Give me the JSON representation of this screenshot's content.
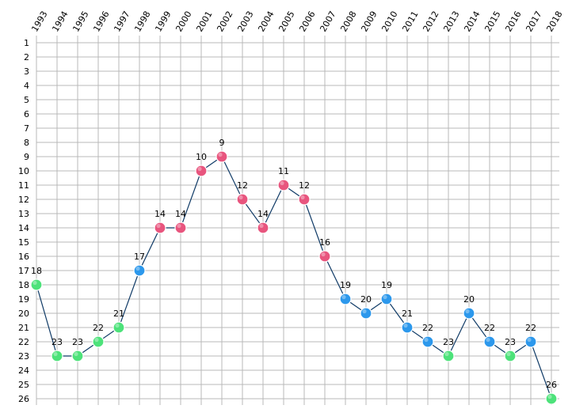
{
  "chart_data": {
    "type": "line",
    "title": "",
    "xlabel": "",
    "ylabel": "",
    "x": [
      "1993",
      "1994",
      "1995",
      "1996",
      "1997",
      "1998",
      "1999",
      "2000",
      "2001",
      "2002",
      "2003",
      "2004",
      "2005",
      "2006",
      "2007",
      "2008",
      "2009",
      "2010",
      "2011",
      "2012",
      "2013",
      "2014",
      "2015",
      "2016",
      "2017",
      "2018"
    ],
    "y_ticks": [
      "1",
      "2",
      "3",
      "4",
      "5",
      "6",
      "7",
      "8",
      "9",
      "10",
      "11",
      "12",
      "13",
      "14",
      "15",
      "16",
      "17",
      "18",
      "19",
      "20",
      "21",
      "22",
      "23",
      "24",
      "25",
      "26"
    ],
    "ylim": [
      1,
      26
    ],
    "y_inverted": true,
    "x_axis_position": "top",
    "grid": true,
    "series": [
      {
        "values": [
          18,
          23,
          23,
          22,
          21,
          17,
          14,
          14,
          10,
          9,
          12,
          14,
          11,
          12,
          16,
          19,
          20,
          19,
          21,
          22,
          23,
          20,
          22,
          23,
          22,
          26
        ],
        "point_colors": [
          "green",
          "green",
          "green",
          "green",
          "green",
          "blue",
          "red",
          "red",
          "red",
          "red",
          "red",
          "red",
          "red",
          "red",
          "red",
          "blue",
          "blue",
          "blue",
          "blue",
          "blue",
          "green",
          "blue",
          "blue",
          "green",
          "blue",
          "green"
        ]
      }
    ],
    "colors": {
      "green": "#4de27a",
      "blue": "#2c98ec",
      "red": "#e8557e",
      "line": "#0f3a66",
      "grid": "#b9b9b9"
    }
  }
}
